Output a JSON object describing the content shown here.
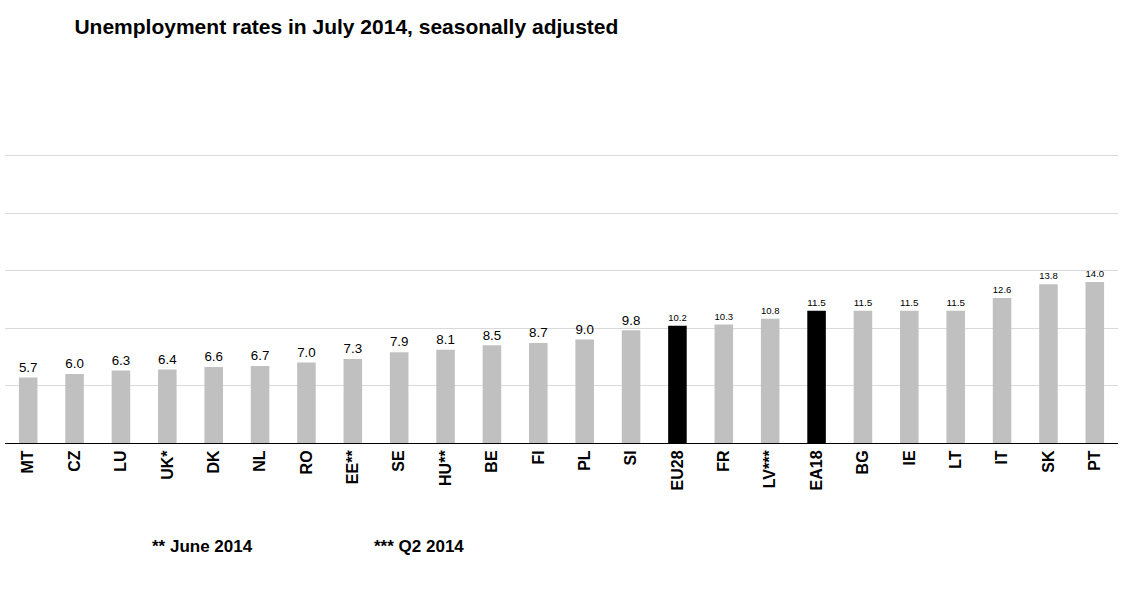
{
  "chart_data": {
    "type": "bar",
    "title": "Unemployment rates in July 2014, seasonally adjusted",
    "categories": [
      "MT",
      "CZ",
      "LU",
      "UK*",
      "DK",
      "NL",
      "RO",
      "EE**",
      "SE",
      "HU**",
      "BE",
      "FI",
      "PL",
      "SI",
      "EU28",
      "FR",
      "LV***",
      "EA18",
      "BG",
      "IE",
      "LT",
      "IT",
      "SK",
      "PT"
    ],
    "values": [
      5.7,
      6.0,
      6.3,
      6.4,
      6.6,
      6.7,
      7.0,
      7.3,
      7.9,
      8.1,
      8.5,
      8.7,
      9.0,
      9.8,
      10.2,
      10.3,
      10.8,
      11.5,
      11.5,
      11.5,
      11.5,
      12.6,
      13.8,
      14.0
    ],
    "value_labels": [
      "5.7",
      "6.0",
      "6.3",
      "6.4",
      "6.6",
      "6.7",
      "7.0",
      "7.3",
      "7.9",
      "8.1",
      "8.5",
      "8.7",
      "9.0",
      "9.8",
      "10.2",
      "10.3",
      "10.8",
      "11.5",
      "11.5",
      "11.5",
      "11.5",
      "12.6",
      "13.8",
      "14.0"
    ],
    "colors": [
      "#c0c0c0",
      "#c0c0c0",
      "#c0c0c0",
      "#c0c0c0",
      "#c0c0c0",
      "#c0c0c0",
      "#c0c0c0",
      "#c0c0c0",
      "#c0c0c0",
      "#c0c0c0",
      "#c0c0c0",
      "#c0c0c0",
      "#c0c0c0",
      "#c0c0c0",
      "#000000",
      "#c0c0c0",
      "#c0c0c0",
      "#000000",
      "#c0c0c0",
      "#c0c0c0",
      "#c0c0c0",
      "#c0c0c0",
      "#c0c0c0",
      "#c0c0c0"
    ],
    "annotations": [
      "** June 2014",
      "*** Q2 2014"
    ],
    "ylim": [
      0,
      30
    ],
    "yticks": [
      0,
      5,
      10,
      15,
      20,
      25,
      30
    ],
    "grid": true,
    "data_labels": true,
    "tick_labels": "x"
  }
}
